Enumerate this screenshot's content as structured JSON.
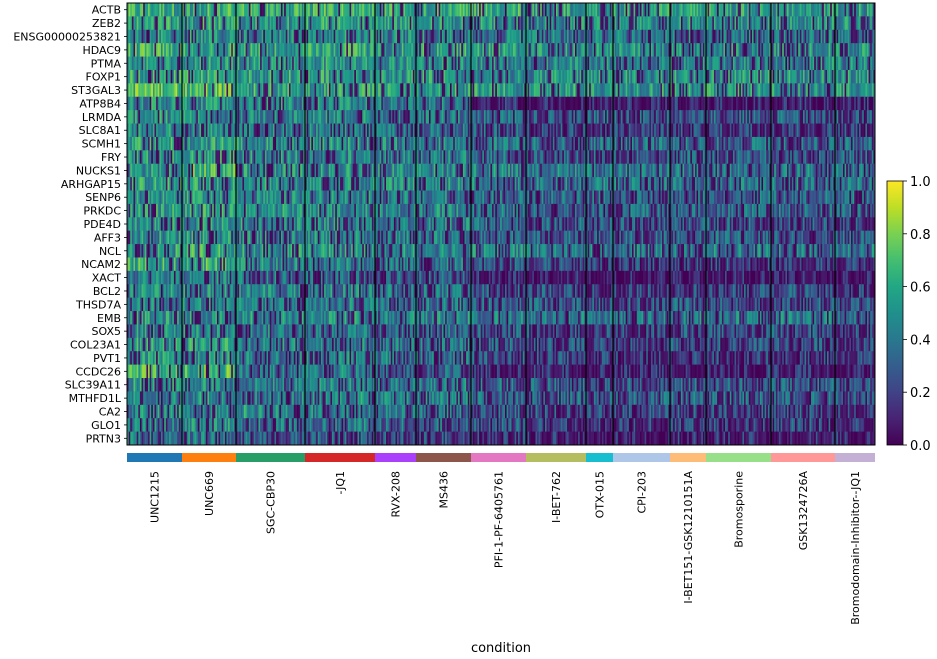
{
  "chart_data": {
    "type": "heatmap",
    "title": "",
    "xlabel": "condition",
    "ylabel": "",
    "colormap": "viridis",
    "colorbar": {
      "range": [
        0.0,
        1.0
      ],
      "ticks": [
        "0.0",
        "0.2",
        "0.4",
        "0.6",
        "0.8",
        "1.0"
      ],
      "tick_values": [
        0.0,
        0.2,
        0.4,
        0.6,
        0.8,
        1.0
      ],
      "placement": "right"
    },
    "genes": [
      "ACTB",
      "ZEB2",
      "ENSG00000253821",
      "HDAC9",
      "PTMA",
      "FOXP1",
      "ST3GAL3",
      "ATP8B4",
      "LRMDA",
      "SLC8A1",
      "SCMH1",
      "FRY",
      "NUCKS1",
      "ARHGAP15",
      "SENP6",
      "PRKDC",
      "PDE4D",
      "AFF3",
      "NCL",
      "NCAM2",
      "XACT",
      "BCL2",
      "THSD7A",
      "EMB",
      "SOX5",
      "COL23A1",
      "PVT1",
      "CCDC26",
      "SLC39A11",
      "MTHFD1L",
      "CA2",
      "GLO1",
      "PRTN3"
    ],
    "conditions": [
      {
        "name": "UNC1215",
        "color": "#1f77b4",
        "relative_cells": 55
      },
      {
        "name": "UNC669",
        "color": "#ff7f0e",
        "relative_cells": 54
      },
      {
        "name": "SGC-CBP30",
        "color": "#279e68",
        "relative_cells": 69
      },
      {
        "name": "-JQ1",
        "color": "#d62728",
        "relative_cells": 70
      },
      {
        "name": "RVX-208",
        "color": "#aa40fc",
        "relative_cells": 41
      },
      {
        "name": "MS436",
        "color": "#8c564b",
        "relative_cells": 55
      },
      {
        "name": "PFI-1-PF-6405761",
        "color": "#e377c2",
        "relative_cells": 55
      },
      {
        "name": "I-BET-762",
        "color": "#b5bd61",
        "relative_cells": 60
      },
      {
        "name": "OTX-015",
        "color": "#17becf",
        "relative_cells": 27
      },
      {
        "name": "CPI-203",
        "color": "#aec7e8",
        "relative_cells": 57
      },
      {
        "name": "I-BET151-GSK1210151A",
        "color": "#ffbb78",
        "relative_cells": 36
      },
      {
        "name": "Bromosporine",
        "color": "#98df8a",
        "relative_cells": 65
      },
      {
        "name": "GSK1324726A",
        "color": "#ff9896",
        "relative_cells": 64
      },
      {
        "name": "Bromodomain-Inhibitor--JQ1",
        "color": "#c5b0d5",
        "relative_cells": 40
      }
    ],
    "group_mean_expression": [
      [
        0.62,
        0.62,
        0.6,
        0.65,
        0.6,
        0.6,
        0.6,
        0.55,
        0.55,
        0.58,
        0.55,
        0.55,
        0.55,
        0.55
      ],
      [
        0.55,
        0.55,
        0.55,
        0.55,
        0.52,
        0.52,
        0.52,
        0.5,
        0.5,
        0.5,
        0.5,
        0.5,
        0.5,
        0.5
      ],
      [
        0.48,
        0.48,
        0.45,
        0.48,
        0.45,
        0.45,
        0.42,
        0.4,
        0.4,
        0.4,
        0.4,
        0.4,
        0.4,
        0.4
      ],
      [
        0.62,
        0.6,
        0.55,
        0.58,
        0.55,
        0.55,
        0.55,
        0.5,
        0.5,
        0.5,
        0.5,
        0.5,
        0.5,
        0.5
      ],
      [
        0.52,
        0.52,
        0.5,
        0.52,
        0.48,
        0.48,
        0.45,
        0.45,
        0.45,
        0.45,
        0.45,
        0.45,
        0.45,
        0.45
      ],
      [
        0.58,
        0.58,
        0.55,
        0.55,
        0.52,
        0.52,
        0.5,
        0.5,
        0.5,
        0.5,
        0.5,
        0.5,
        0.5,
        0.5
      ],
      [
        0.72,
        0.7,
        0.58,
        0.58,
        0.55,
        0.55,
        0.55,
        0.55,
        0.55,
        0.55,
        0.52,
        0.52,
        0.5,
        0.55
      ],
      [
        0.5,
        0.48,
        0.45,
        0.45,
        0.42,
        0.4,
        0.12,
        0.1,
        0.08,
        0.1,
        0.1,
        0.1,
        0.1,
        0.08
      ],
      [
        0.5,
        0.48,
        0.45,
        0.45,
        0.4,
        0.4,
        0.35,
        0.3,
        0.3,
        0.3,
        0.3,
        0.3,
        0.3,
        0.3
      ],
      [
        0.48,
        0.45,
        0.42,
        0.42,
        0.38,
        0.38,
        0.3,
        0.22,
        0.2,
        0.2,
        0.2,
        0.22,
        0.2,
        0.18
      ],
      [
        0.58,
        0.55,
        0.5,
        0.48,
        0.45,
        0.45,
        0.4,
        0.35,
        0.35,
        0.35,
        0.35,
        0.35,
        0.35,
        0.35
      ],
      [
        0.55,
        0.55,
        0.48,
        0.45,
        0.42,
        0.42,
        0.35,
        0.3,
        0.3,
        0.3,
        0.3,
        0.3,
        0.3,
        0.3
      ],
      [
        0.52,
        0.65,
        0.5,
        0.5,
        0.48,
        0.48,
        0.45,
        0.42,
        0.4,
        0.4,
        0.4,
        0.4,
        0.4,
        0.4
      ],
      [
        0.55,
        0.55,
        0.5,
        0.5,
        0.48,
        0.48,
        0.42,
        0.4,
        0.4,
        0.4,
        0.4,
        0.4,
        0.4,
        0.38
      ],
      [
        0.5,
        0.52,
        0.45,
        0.45,
        0.42,
        0.42,
        0.38,
        0.35,
        0.35,
        0.35,
        0.35,
        0.35,
        0.35,
        0.35
      ],
      [
        0.55,
        0.55,
        0.5,
        0.48,
        0.45,
        0.45,
        0.4,
        0.35,
        0.35,
        0.35,
        0.35,
        0.35,
        0.35,
        0.35
      ],
      [
        0.52,
        0.5,
        0.48,
        0.45,
        0.42,
        0.42,
        0.35,
        0.3,
        0.25,
        0.25,
        0.25,
        0.28,
        0.25,
        0.25
      ],
      [
        0.5,
        0.5,
        0.45,
        0.45,
        0.42,
        0.42,
        0.38,
        0.32,
        0.3,
        0.3,
        0.3,
        0.32,
        0.3,
        0.3
      ],
      [
        0.55,
        0.58,
        0.52,
        0.5,
        0.48,
        0.48,
        0.45,
        0.42,
        0.4,
        0.4,
        0.4,
        0.42,
        0.4,
        0.4
      ],
      [
        0.6,
        0.62,
        0.45,
        0.42,
        0.4,
        0.4,
        0.3,
        0.22,
        0.2,
        0.2,
        0.2,
        0.22,
        0.2,
        0.2
      ],
      [
        0.45,
        0.42,
        0.38,
        0.35,
        0.3,
        0.28,
        0.1,
        0.08,
        0.06,
        0.06,
        0.08,
        0.08,
        0.08,
        0.06
      ],
      [
        0.5,
        0.48,
        0.45,
        0.45,
        0.4,
        0.4,
        0.3,
        0.25,
        0.22,
        0.22,
        0.25,
        0.25,
        0.25,
        0.22
      ],
      [
        0.48,
        0.48,
        0.42,
        0.42,
        0.38,
        0.38,
        0.32,
        0.28,
        0.25,
        0.25,
        0.28,
        0.28,
        0.28,
        0.25
      ],
      [
        0.5,
        0.5,
        0.48,
        0.5,
        0.45,
        0.45,
        0.42,
        0.4,
        0.38,
        0.38,
        0.4,
        0.4,
        0.4,
        0.38
      ],
      [
        0.48,
        0.45,
        0.42,
        0.4,
        0.38,
        0.38,
        0.3,
        0.25,
        0.22,
        0.22,
        0.25,
        0.25,
        0.25,
        0.22
      ],
      [
        0.55,
        0.55,
        0.45,
        0.45,
        0.4,
        0.4,
        0.3,
        0.25,
        0.22,
        0.22,
        0.25,
        0.25,
        0.25,
        0.22
      ],
      [
        0.52,
        0.5,
        0.42,
        0.45,
        0.4,
        0.4,
        0.3,
        0.22,
        0.2,
        0.2,
        0.22,
        0.22,
        0.22,
        0.2
      ],
      [
        0.68,
        0.65,
        0.4,
        0.42,
        0.35,
        0.32,
        0.15,
        0.12,
        0.1,
        0.1,
        0.12,
        0.12,
        0.12,
        0.1
      ],
      [
        0.5,
        0.48,
        0.42,
        0.45,
        0.4,
        0.4,
        0.35,
        0.3,
        0.28,
        0.28,
        0.3,
        0.3,
        0.3,
        0.28
      ],
      [
        0.48,
        0.48,
        0.42,
        0.52,
        0.4,
        0.4,
        0.35,
        0.32,
        0.3,
        0.3,
        0.32,
        0.32,
        0.3,
        0.28
      ],
      [
        0.45,
        0.45,
        0.5,
        0.42,
        0.38,
        0.38,
        0.3,
        0.25,
        0.22,
        0.22,
        0.25,
        0.25,
        0.25,
        0.22
      ],
      [
        0.42,
        0.5,
        0.4,
        0.4,
        0.35,
        0.35,
        0.28,
        0.22,
        0.2,
        0.2,
        0.22,
        0.22,
        0.22,
        0.2
      ],
      [
        0.4,
        0.4,
        0.3,
        0.3,
        0.25,
        0.25,
        0.15,
        0.12,
        0.1,
        0.1,
        0.12,
        0.12,
        0.12,
        0.1
      ]
    ]
  }
}
